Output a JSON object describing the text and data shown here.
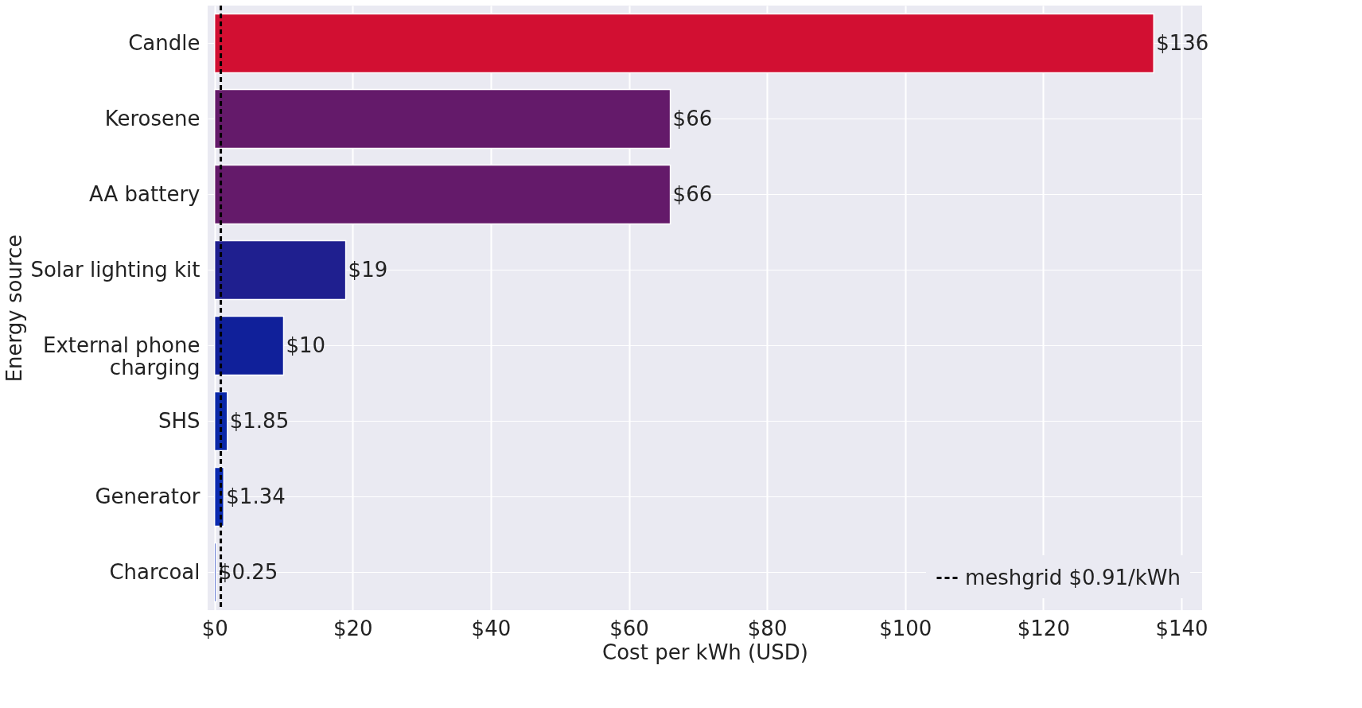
{
  "chart_data": {
    "type": "bar",
    "orientation": "horizontal",
    "xlabel": "Cost per kWh (USD)",
    "ylabel": "Energy source",
    "categories": [
      "Candle",
      "Kerosene",
      "AA battery",
      "Solar lighting kit",
      "External phone charging",
      "SHS",
      "Generator",
      "Charcoal"
    ],
    "values": [
      136,
      66,
      66,
      19,
      10,
      1.85,
      1.34,
      0.25
    ],
    "colors": [
      "#d20f32",
      "#641a6a",
      "#641a6a",
      "#1f1f8f",
      "#10209a",
      "#0a28a8",
      "#0a2ab0",
      "#0a2ab8"
    ],
    "value_labels": [
      "$136",
      "$66",
      "$66",
      "$19",
      "$10",
      "$1.85",
      "$1.34",
      "$0.25"
    ],
    "xlim": [
      -1,
      143
    ],
    "xticks": [
      {
        "value": 0,
        "label": "$0"
      },
      {
        "value": 20,
        "label": "$20"
      },
      {
        "value": 40,
        "label": "$40"
      },
      {
        "value": 60,
        "label": "$60"
      },
      {
        "value": 80,
        "label": "$80"
      },
      {
        "value": 100,
        "label": "$100"
      },
      {
        "value": 120,
        "label": "$120"
      },
      {
        "value": 140,
        "label": "$140"
      }
    ],
    "ref_lines": [
      {
        "axis": "x",
        "value": 0.91,
        "label": "meshgrid $0.91/kWh",
        "color": "#000000",
        "line_style": "dashed"
      }
    ],
    "grid": true,
    "legend": "bottom right"
  }
}
